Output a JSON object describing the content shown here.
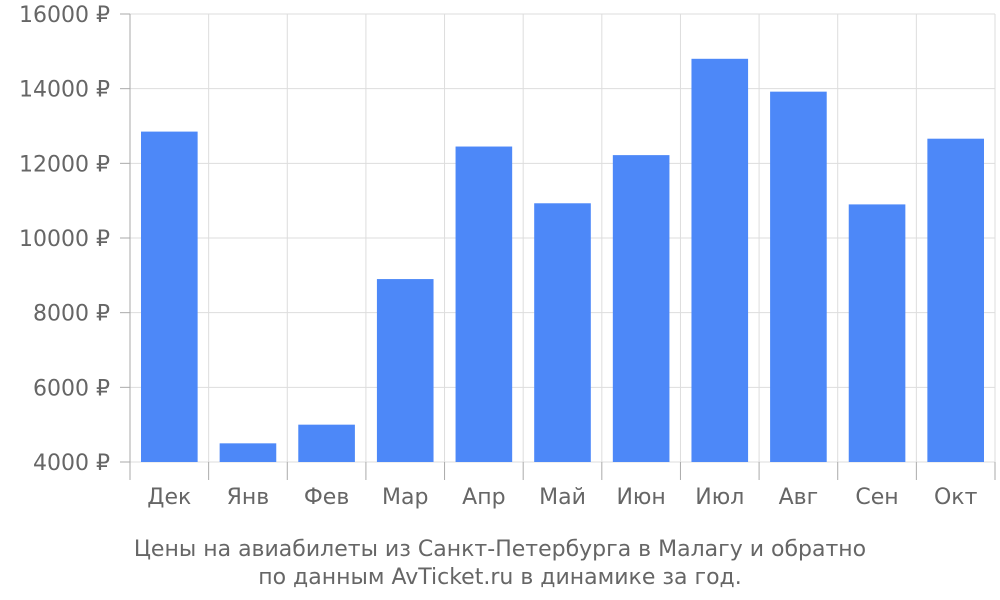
{
  "chart_data": {
    "type": "bar",
    "categories": [
      "Дек",
      "Янв",
      "Фев",
      "Мар",
      "Апр",
      "Май",
      "Июн",
      "Июл",
      "Авг",
      "Сен",
      "Окт"
    ],
    "values": [
      12850,
      4500,
      5000,
      8900,
      12450,
      10930,
      12220,
      14800,
      13920,
      10900,
      12660
    ],
    "ylim": [
      4000,
      16000
    ],
    "yticks": [
      4000,
      6000,
      8000,
      10000,
      12000,
      14000,
      16000
    ],
    "ytick_labels": [
      "4000 ₽",
      "6000 ₽",
      "8000 ₽",
      "10000 ₽",
      "12000 ₽",
      "14000 ₽",
      "16000 ₽"
    ],
    "caption_line1": "Цены на авиабилеты из Санкт-Петербурга в Малагу и обратно",
    "caption_line2": "по данным AvTicket.ru в динамике за год.",
    "grid": true,
    "bar_color": "#4d88f8",
    "text_color": "#666666",
    "grid_color": "#dddddd"
  }
}
